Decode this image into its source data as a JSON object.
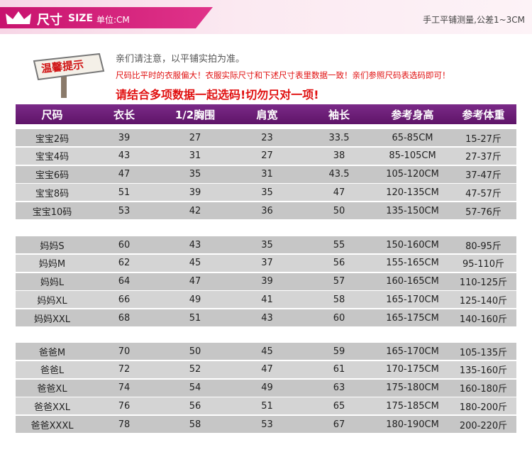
{
  "header": {
    "title": "尺寸",
    "title_en": "SIZE",
    "unit": "单位:CM",
    "note": "手工平铺测量,公差1~3CM"
  },
  "notice": {
    "sign": "温馨提示",
    "lines": [
      "亲们请注意，以平铺实拍为准。",
      "尺码比平时的衣服偏大！衣服实际尺寸和下述尺寸表里数据一致！亲们参照尺码表选码即可！",
      "请结合多项数据一起选码!切勿只对一项!"
    ]
  },
  "table": {
    "columns": [
      "尺码",
      "衣长",
      "1/2胸围",
      "肩宽",
      "袖长",
      "参考身高",
      "参考体重"
    ],
    "groups": [
      {
        "rows": [
          [
            "宝宝2码",
            "39",
            "27",
            "23",
            "33.5",
            "65-85CM",
            "15-27斤"
          ],
          [
            "宝宝4码",
            "43",
            "31",
            "27",
            "38",
            "85-105CM",
            "27-37斤"
          ],
          [
            "宝宝6码",
            "47",
            "35",
            "31",
            "43.5",
            "105-120CM",
            "37-47斤"
          ],
          [
            "宝宝8码",
            "51",
            "39",
            "35",
            "47",
            "120-135CM",
            "47-57斤"
          ],
          [
            "宝宝10码",
            "53",
            "42",
            "36",
            "50",
            "135-150CM",
            "57-76斤"
          ]
        ]
      },
      {
        "rows": [
          [
            "妈妈S",
            "60",
            "43",
            "35",
            "55",
            "150-160CM",
            "80-95斤"
          ],
          [
            "妈妈M",
            "62",
            "45",
            "37",
            "56",
            "155-165CM",
            "95-110斤"
          ],
          [
            "妈妈L",
            "64",
            "47",
            "39",
            "57",
            "160-165CM",
            "110-125斤"
          ],
          [
            "妈妈XL",
            "66",
            "49",
            "41",
            "58",
            "165-170CM",
            "125-140斤"
          ],
          [
            "妈妈XXL",
            "68",
            "51",
            "43",
            "60",
            "165-175CM",
            "140-160斤"
          ]
        ]
      },
      {
        "rows": [
          [
            "爸爸M",
            "70",
            "50",
            "45",
            "59",
            "165-170CM",
            "105-135斤"
          ],
          [
            "爸爸L",
            "72",
            "52",
            "47",
            "61",
            "170-175CM",
            "135-160斤"
          ],
          [
            "爸爸XL",
            "74",
            "54",
            "49",
            "63",
            "175-180CM",
            "160-180斤"
          ],
          [
            "爸爸XXL",
            "76",
            "56",
            "51",
            "65",
            "175-185CM",
            "180-200斤"
          ],
          [
            "爸爸XXXL",
            "78",
            "58",
            "53",
            "67",
            "180-190CM",
            "200-220斤"
          ]
        ]
      }
    ]
  }
}
